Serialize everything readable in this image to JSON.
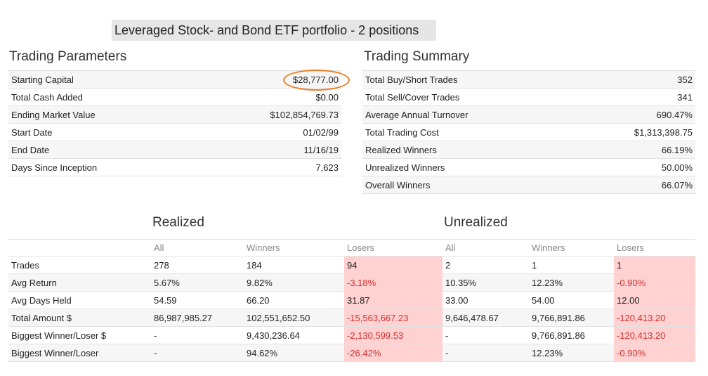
{
  "banner": "Leveraged Stock- and Bond ETF portfolio - 2 positions",
  "trading_parameters": {
    "title": "Trading Parameters",
    "rows": [
      {
        "label": "Starting Capital",
        "value": "$28,777.00"
      },
      {
        "label": "Total Cash Added",
        "value": "$0.00"
      },
      {
        "label": "Ending Market Value",
        "value": "$102,854,769.73"
      },
      {
        "label": "Start Date",
        "value": "01/02/99"
      },
      {
        "label": "End Date",
        "value": "11/16/19"
      },
      {
        "label": "Days Since Inception",
        "value": "7,623"
      }
    ]
  },
  "trading_summary": {
    "title": "Trading Summary",
    "rows": [
      {
        "label": "Total Buy/Short Trades",
        "value": "352"
      },
      {
        "label": "Total Sell/Cover Trades",
        "value": "341"
      },
      {
        "label": "Average Annual Turnover",
        "value": "690.47%"
      },
      {
        "label": "Total Trading Cost",
        "value": "$1,313,398.75"
      },
      {
        "label": "Realized Winners",
        "value": "66.19%"
      },
      {
        "label": "Unrealized Winners",
        "value": "50.00%"
      },
      {
        "label": "Overall Winners",
        "value": "66.07%"
      }
    ]
  },
  "realized_title": "Realized",
  "unrealized_title": "Unrealized",
  "columns": [
    "All",
    "Winners",
    "Losers",
    "All",
    "Winners",
    "Losers"
  ],
  "stats": [
    {
      "label": "Trades",
      "cells": [
        "278",
        "184",
        "94",
        "2",
        "1",
        "1"
      ]
    },
    {
      "label": "Avg Return",
      "cells": [
        "5.67%",
        "9.82%",
        "-3.18%",
        "10.35%",
        "12.23%",
        "-0.90%"
      ]
    },
    {
      "label": "Avg Days Held",
      "cells": [
        "54.59",
        "66.20",
        "31.87",
        "33.00",
        "54.00",
        "12.00"
      ]
    },
    {
      "label": "Total Amount $",
      "cells": [
        "86,987,985.27",
        "102,551,652.50",
        "-15,563,667.23",
        "9,646,478.67",
        "9,766,891.86",
        "-120,413.20"
      ]
    },
    {
      "label": "Biggest Winner/Loser $",
      "cells": [
        "-",
        "9,430,236.64",
        "-2,130,599.53",
        "-",
        "9,766,891.86",
        "-120,413.20"
      ]
    },
    {
      "label": "Biggest Winner/Loser",
      "cells": [
        "-",
        "94.62%",
        "-26.42%",
        "-",
        "12.23%",
        "-0.90%"
      ]
    }
  ],
  "colors": {
    "highlight_oval": "#ee7d22",
    "loser_bg": "#ffd1d1",
    "loser_text": "#cc3333",
    "banner_bg": "#e6e6e6"
  }
}
